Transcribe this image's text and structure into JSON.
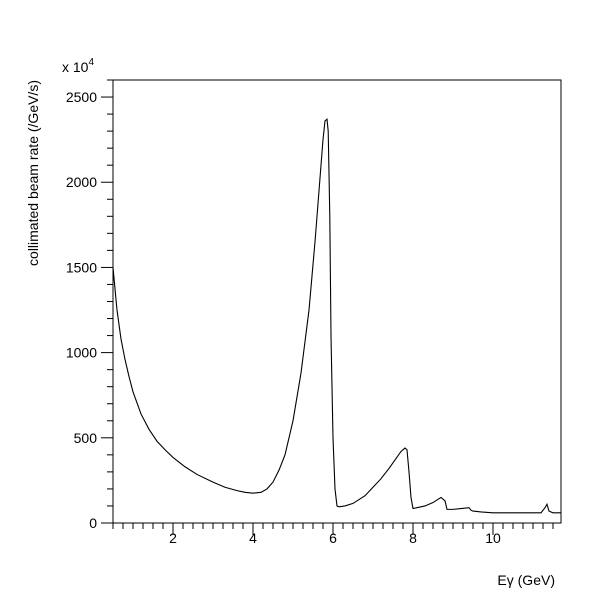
{
  "chart_data": {
    "type": "line",
    "title": "",
    "xlabel": "Eγ (GeV)",
    "ylabel": "collimated beam rate (/GeV/s)",
    "y_multiplier": "x 10",
    "y_multiplier_exp": "4",
    "xlim": [
      0.5,
      11.7
    ],
    "ylim": [
      0,
      2600
    ],
    "x_ticks": [
      2,
      4,
      6,
      8,
      10
    ],
    "x_tick_labels": [
      "2",
      "4",
      "6",
      "8",
      "10"
    ],
    "y_ticks": [
      0,
      500,
      1000,
      1500,
      2000,
      2500
    ],
    "y_tick_labels": [
      "0",
      "500",
      "1000",
      "1500",
      "2000",
      "2500"
    ],
    "grid": false,
    "series": [
      {
        "x": [
          0.5,
          0.6,
          0.7,
          0.8,
          0.9,
          1.0,
          1.2,
          1.4,
          1.6,
          1.8,
          2.0,
          2.3,
          2.6,
          3.0,
          3.3,
          3.6,
          3.8,
          4.0,
          4.2,
          4.35,
          4.5,
          4.65,
          4.8,
          5.0,
          5.2,
          5.4,
          5.55,
          5.65,
          5.75,
          5.8,
          5.85,
          5.88,
          5.92,
          5.95,
          6.0,
          6.05,
          6.1,
          6.15,
          6.3,
          6.5,
          6.8,
          7.0,
          7.2,
          7.4,
          7.55,
          7.7,
          7.8,
          7.85,
          7.9,
          7.95,
          8.0,
          8.1,
          8.3,
          8.5,
          8.7,
          8.8,
          8.85,
          9.0,
          9.2,
          9.4,
          9.45,
          9.5,
          9.7,
          10.0,
          10.5,
          11.0,
          11.2,
          11.3,
          11.35,
          11.4,
          11.5,
          11.7
        ],
        "y": [
          1500,
          1250,
          1080,
          960,
          860,
          770,
          640,
          550,
          480,
          430,
          385,
          330,
          285,
          240,
          210,
          190,
          180,
          175,
          180,
          200,
          240,
          310,
          400,
          600,
          880,
          1250,
          1650,
          1950,
          2250,
          2360,
          2370,
          2300,
          1800,
          1100,
          500,
          200,
          100,
          95,
          100,
          115,
          160,
          210,
          260,
          320,
          370,
          420,
          440,
          430,
          300,
          150,
          85,
          90,
          100,
          120,
          150,
          130,
          80,
          80,
          85,
          90,
          75,
          70,
          65,
          60,
          60,
          60,
          60,
          90,
          110,
          70,
          60,
          60
        ]
      }
    ]
  }
}
